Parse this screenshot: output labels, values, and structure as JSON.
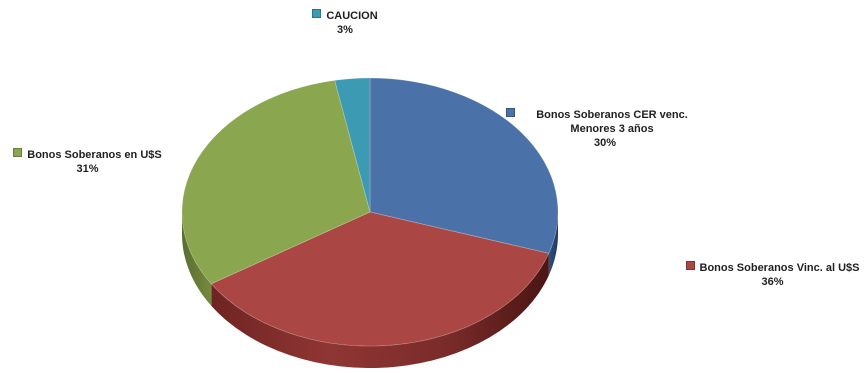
{
  "chart_data": {
    "type": "pie",
    "title": "",
    "slices": [
      {
        "label": "Bonos Soberanos CER venc. Menores 3 años",
        "value": 30,
        "pct_text": "30%",
        "color": "#4A72A8"
      },
      {
        "label": "Bonos Soberanos Vinc. al U$S",
        "value": 36,
        "pct_text": "36%",
        "color": "#AA4643"
      },
      {
        "label": "Bonos Soberanos en U$S",
        "value": 31,
        "pct_text": "31%",
        "color": "#8AA64E"
      },
      {
        "label": "CAUCION",
        "value": 3,
        "pct_text": "3%",
        "color": "#3D9AB3"
      }
    ],
    "style": "3d"
  }
}
